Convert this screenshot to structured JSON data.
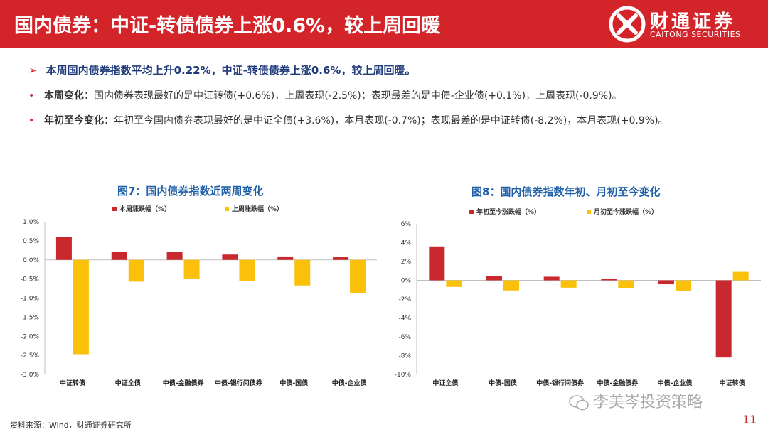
{
  "header": {
    "title": "国内债券：中证-转债债券上涨0.6%，较上周回暖",
    "logo_cn": "财通证券",
    "logo_en": "CAITONG SECURITIES"
  },
  "headline": {
    "marker": "➢",
    "text": "本周国内债券指数平均上升0.22%，中证-转债债券上涨0.6%，较上周回暖。"
  },
  "bullets": [
    {
      "marker": "•",
      "label": "本周变化",
      "text": "：国内债券表现最好的是中证转债(+0.6%)，上周表现(-2.5%)；表现最差的是中债-企业债(+0.1%)，上周表现(-0.9%)。"
    },
    {
      "marker": "•",
      "label": "年初至今变化",
      "text": "：年初至今国内债券表现最好的是中证全债(+3.6%)，本月表现(-0.7%)；表现最差的是中证转债(-8.2%)，本月表现(+0.9%)。"
    }
  ],
  "chart_data": [
    {
      "type": "bar",
      "title": "图7：国内债券指数近两周变化",
      "categories": [
        "中证转债",
        "中证全债",
        "中债-金融债券",
        "中债-银行间债券",
        "中债-国债",
        "中债-企业债"
      ],
      "series": [
        {
          "name": "本周涨跌幅（%）",
          "color": "#c8282e",
          "values": [
            0.6,
            0.2,
            0.2,
            0.14,
            0.09,
            0.07
          ]
        },
        {
          "name": "上周涨跌幅（%）",
          "color": "#fbc10a",
          "values": [
            -2.47,
            -0.57,
            -0.5,
            -0.55,
            -0.67,
            -0.86
          ]
        }
      ],
      "ylim": [
        -3.0,
        1.0
      ],
      "yticks": [
        1.0,
        0.5,
        0.0,
        -0.5,
        -1.0,
        -1.5,
        -2.0,
        -2.5,
        -3.0
      ],
      "ytick_labels": [
        "1.0%",
        "0.5%",
        "0.0%",
        "-0.5%",
        "-1.0%",
        "-1.5%",
        "-2.0%",
        "-2.5%",
        "-3.0%"
      ],
      "grid": false,
      "legend": "top"
    },
    {
      "type": "bar",
      "title": "图8：国内债券指数年初、月初至今变化",
      "categories": [
        "中证全债",
        "中债-国债",
        "中债-银行间债券",
        "中债-金融债券",
        "中债-企业债",
        "中证转债"
      ],
      "series": [
        {
          "name": "年初至今涨跌幅（%）",
          "color": "#c8282e",
          "values": [
            3.6,
            0.45,
            0.38,
            0.12,
            -0.42,
            -8.2
          ]
        },
        {
          "name": "月初至今涨跌幅（%）",
          "color": "#fbc10a",
          "values": [
            -0.7,
            -1.08,
            -0.78,
            -0.82,
            -1.1,
            0.9
          ]
        }
      ],
      "ylim": [
        -10,
        6
      ],
      "yticks": [
        6,
        4,
        2,
        0,
        -2,
        -4,
        -6,
        -8,
        -10
      ],
      "ytick_labels": [
        "6%",
        "4%",
        "2%",
        "0%",
        "-2%",
        "-4%",
        "-6%",
        "-8%",
        "-10%"
      ],
      "grid": false,
      "legend": "top"
    }
  ],
  "footer": {
    "source": "资料来源：Wind，财通证券研究所",
    "page": "11",
    "watermark": "李美岑投资策略"
  }
}
